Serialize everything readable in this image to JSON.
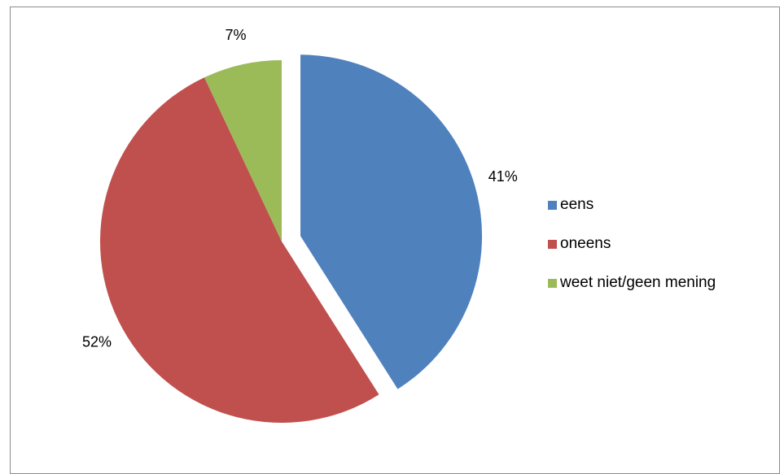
{
  "chart_data": {
    "type": "pie",
    "categories": [
      "eens",
      "oneens",
      "weet niet/geen mening"
    ],
    "values": [
      41,
      52,
      7
    ],
    "labels": [
      "41%",
      "52%",
      "7%"
    ],
    "colors": [
      "#4f81bd",
      "#c0504d",
      "#9bbb59"
    ],
    "exploded": [
      "eens"
    ],
    "legend_position": "right"
  }
}
